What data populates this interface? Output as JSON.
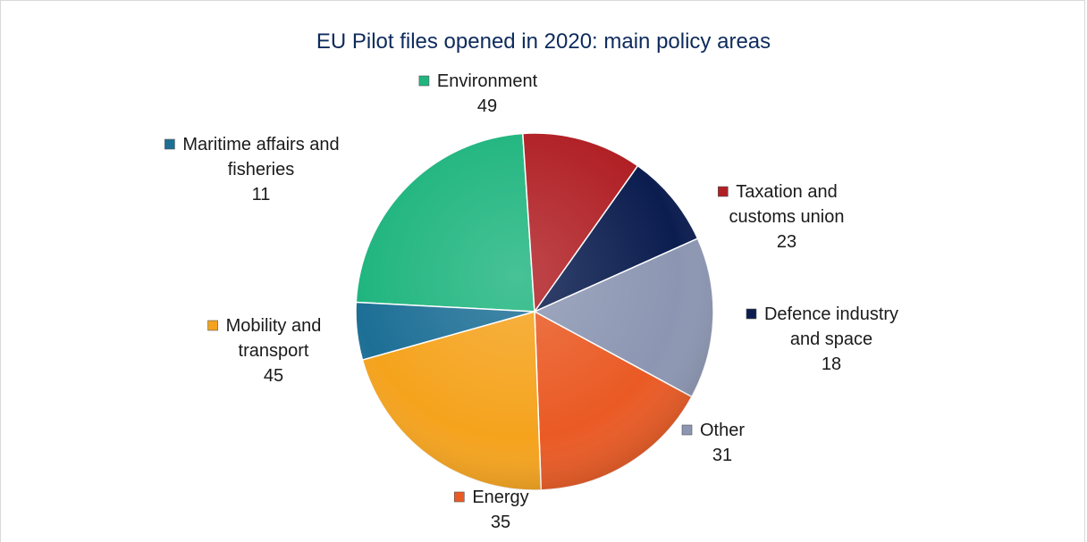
{
  "chart_data": {
    "type": "pie",
    "title": "EU Pilot files opened in 2020: main policy areas",
    "slices": [
      {
        "label_lines": [
          "Environment"
        ],
        "value": 49,
        "color": "#1fb57f"
      },
      {
        "label_lines": [
          "Taxation and",
          "customs union"
        ],
        "value": 23,
        "color": "#b01f24"
      },
      {
        "label_lines": [
          "Defence industry",
          "and space"
        ],
        "value": 18,
        "color": "#0b1d4f"
      },
      {
        "label_lines": [
          "Other"
        ],
        "value": 31,
        "color": "#8c96b2"
      },
      {
        "label_lines": [
          "Energy"
        ],
        "value": 35,
        "color": "#ea5a24"
      },
      {
        "label_lines": [
          "Mobility and",
          "transport"
        ],
        "value": 45,
        "color": "#f5a31d"
      },
      {
        "label_lines": [
          "Maritime affairs and",
          "fisheries"
        ],
        "value": 11,
        "color": "#1d6f96"
      }
    ],
    "legend": "none",
    "data_labels": "category name and value"
  }
}
